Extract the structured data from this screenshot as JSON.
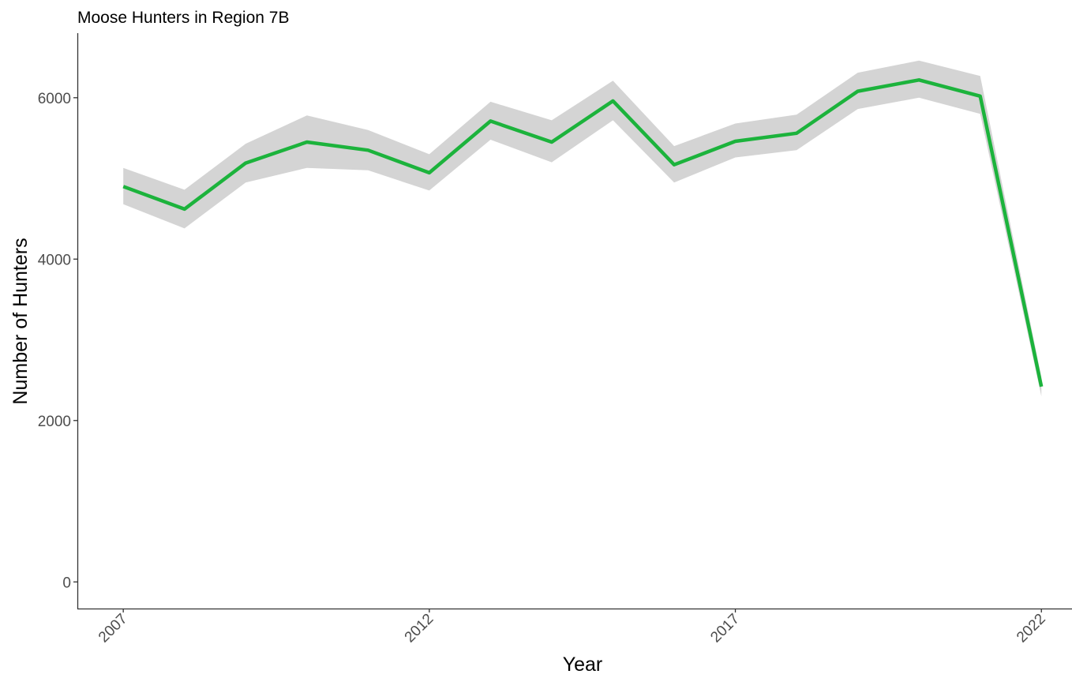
{
  "chart_data": {
    "type": "line",
    "title": "Moose Hunters in Region 7B",
    "xlabel": "Year",
    "ylabel": "Number of Hunters",
    "x": [
      2007,
      2008,
      2009,
      2010,
      2011,
      2012,
      2013,
      2014,
      2015,
      2016,
      2017,
      2018,
      2019,
      2020,
      2021,
      2022
    ],
    "series": [
      {
        "values": [
          4900,
          4620,
          5190,
          5450,
          5350,
          5070,
          5710,
          5450,
          5960,
          5170,
          5460,
          5560,
          6080,
          6220,
          6020,
          2420
        ],
        "lower": [
          4680,
          4380,
          4950,
          5130,
          5100,
          4850,
          5480,
          5200,
          5720,
          4950,
          5260,
          5350,
          5860,
          6000,
          5800,
          2300
        ],
        "upper": [
          5130,
          4860,
          5430,
          5780,
          5600,
          5300,
          5950,
          5720,
          6210,
          5400,
          5680,
          5790,
          6310,
          6460,
          6270,
          2540
        ]
      }
    ],
    "xticks": [
      "2007",
      "2012",
      "2017",
      "2022"
    ],
    "yticks": [
      "0",
      "2000",
      "4000",
      "6000"
    ],
    "xlim": [
      2006.25,
      2022.5
    ],
    "ylim": [
      -330,
      6800
    ],
    "grid": false,
    "legend": "none",
    "colors": {
      "line": "#1cb33c",
      "ribbon": "#d4d4d4"
    }
  }
}
